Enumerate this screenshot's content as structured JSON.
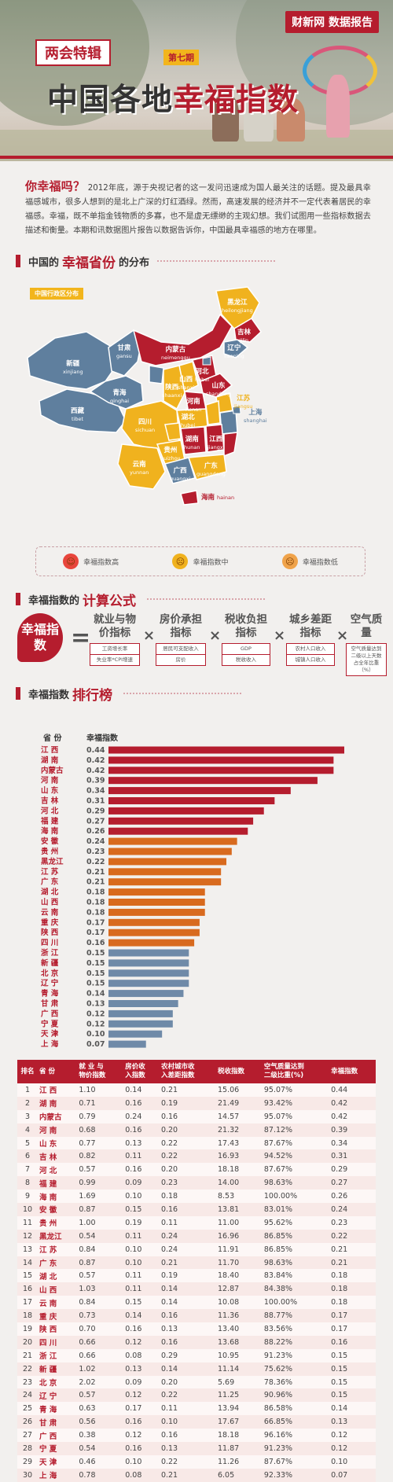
{
  "header": {
    "logo": "财新网 数据报告",
    "tag": "两会特辑",
    "issue": "第七期",
    "title_prefix": "中国各地",
    "title_highlight": "幸福指数"
  },
  "intro": {
    "question": "你幸福吗？",
    "text": "2012年底，源于央视记者的这一发问迅速成为国人最关注的话题。提及最具幸福感城市，很多人想到的是北上广深的灯红酒绿。然而，高速发展的经济并不一定代表着居民的幸福感。幸福，既不单指金钱物质的多寡，也不是虚无缥缈的主观幻想。我们试图用一些指标数据去描述和衡量。本期和讯数据图片报告以数据告诉你，中国最具幸福感的地方在哪里。"
  },
  "section_map": {
    "t1": "中国的",
    "t2": "幸福省份",
    "t3": "的分布"
  },
  "map": {
    "label": "中国行政区分布",
    "colors": {
      "high": "#b51d2e",
      "mid": "#f0b21e",
      "low": "#5f7f9e"
    },
    "provinces": [
      {
        "cn": "新疆",
        "py": "xinjiang",
        "level": "low"
      },
      {
        "cn": "西藏",
        "py": "tibet",
        "level": "low"
      },
      {
        "cn": "甘肃",
        "py": "gansu",
        "level": "low"
      },
      {
        "cn": "青海",
        "py": "qinghai",
        "level": "low"
      },
      {
        "cn": "内蒙古",
        "py": "neimenggu",
        "level": "high"
      },
      {
        "cn": "黑龙江",
        "py": "heilongjiang",
        "level": "mid"
      },
      {
        "cn": "吉林",
        "py": "jilin",
        "level": "high"
      },
      {
        "cn": "辽宁",
        "py": "liaoning",
        "level": "low"
      },
      {
        "cn": "北京",
        "py": "beijing",
        "level": "low"
      },
      {
        "cn": "天津",
        "py": "tianjin",
        "level": "low"
      },
      {
        "cn": "河北",
        "py": "hebei",
        "level": "high"
      },
      {
        "cn": "宁夏",
        "py": "ningxia",
        "level": "low"
      },
      {
        "cn": "山西",
        "py": "shanxi",
        "level": "mid"
      },
      {
        "cn": "陕西",
        "py": "shaanxi",
        "level": "mid"
      },
      {
        "cn": "山东",
        "py": "shandong",
        "level": "high"
      },
      {
        "cn": "河南",
        "py": "henan",
        "level": "high"
      },
      {
        "cn": "江苏",
        "py": "jiangsu",
        "level": "mid"
      },
      {
        "cn": "上海",
        "py": "shanghai",
        "level": "low"
      },
      {
        "cn": "安徽",
        "py": "anhui",
        "level": "mid"
      },
      {
        "cn": "湖北",
        "py": "hubei",
        "level": "mid"
      },
      {
        "cn": "四川",
        "py": "sichuan",
        "level": "mid"
      },
      {
        "cn": "重庆",
        "py": "chongqing",
        "level": "mid"
      },
      {
        "cn": "浙江",
        "py": "zhejiang",
        "level": "low"
      },
      {
        "cn": "湖南",
        "py": "hunan",
        "level": "high"
      },
      {
        "cn": "江西",
        "py": "jiangxi",
        "level": "high"
      },
      {
        "cn": "福建",
        "py": "fujian",
        "level": "high"
      },
      {
        "cn": "贵州",
        "py": "guizhou",
        "level": "mid"
      },
      {
        "cn": "云南",
        "py": "yunnan",
        "level": "mid"
      },
      {
        "cn": "广西",
        "py": "guangxi",
        "level": "low"
      },
      {
        "cn": "广东",
        "py": "guangdong",
        "level": "mid"
      },
      {
        "cn": "海南",
        "py": "hainan",
        "level": "high"
      }
    ],
    "legend": [
      {
        "label": "幸福指数高",
        "color": "#e8453c",
        "face": "☺"
      },
      {
        "label": "幸福指数中",
        "color": "#f0b21e",
        "face": "☹"
      },
      {
        "label": "幸福指数低",
        "color": "#f0a34a",
        "face": "☹"
      }
    ]
  },
  "section_formula": {
    "t1": "幸福指数的",
    "t2": "计算公式"
  },
  "formula": {
    "result": "幸福指数",
    "eq": "=",
    "op": "×",
    "terms": [
      {
        "name": "就业与物价指标",
        "subs": [
          "工资增长率",
          "失业率*CPI增速"
        ]
      },
      {
        "name": "房价承担指标",
        "subs": [
          "居民可支配收入",
          "房价"
        ]
      },
      {
        "name": "税收负担指标",
        "subs": [
          "GDP",
          "税收收入"
        ]
      },
      {
        "name": "城乡差距指标",
        "subs": [
          "农村人口收入",
          "城镇人口收入"
        ]
      },
      {
        "name": "空气质量",
        "subs": [
          "空气质量达到二级以上天数占全年比重（%）"
        ]
      }
    ]
  },
  "section_rank": {
    "t1": "幸福指数",
    "t2": "排行榜"
  },
  "chart_data": {
    "type": "bar",
    "orientation": "horizontal",
    "header_province": "省  份",
    "header_index": "幸福指数",
    "categories": [
      "江 西",
      "湖 南",
      "内蒙古",
      "河 南",
      "山 东",
      "吉 林",
      "河 北",
      "福 建",
      "海 南",
      "安 徽",
      "贵 州",
      "黑龙江",
      "江 苏",
      "广 东",
      "湖 北",
      "山 西",
      "云 南",
      "重 庆",
      "陕 西",
      "四 川",
      "浙 江",
      "新 疆",
      "北 京",
      "辽 宁",
      "青 海",
      "甘 肃",
      "广 西",
      "宁 夏",
      "天 津",
      "上 海"
    ],
    "values": [
      0.44,
      0.42,
      0.42,
      0.39,
      0.34,
      0.31,
      0.29,
      0.27,
      0.26,
      0.24,
      0.23,
      0.22,
      0.21,
      0.21,
      0.18,
      0.18,
      0.18,
      0.17,
      0.17,
      0.16,
      0.15,
      0.15,
      0.15,
      0.15,
      0.14,
      0.13,
      0.12,
      0.12,
      0.1,
      0.07
    ],
    "bar_colors": [
      "#b51d2e",
      "#b51d2e",
      "#b51d2e",
      "#b51d2e",
      "#b51d2e",
      "#b51d2e",
      "#b51d2e",
      "#b51d2e",
      "#b51d2e",
      "#d86a1e",
      "#d86a1e",
      "#d86a1e",
      "#d86a1e",
      "#d86a1e",
      "#d86a1e",
      "#d86a1e",
      "#d86a1e",
      "#d86a1e",
      "#d86a1e",
      "#d86a1e",
      "#6f8aa8",
      "#6f8aa8",
      "#6f8aa8",
      "#6f8aa8",
      "#6f8aa8",
      "#6f8aa8",
      "#6f8aa8",
      "#6f8aa8",
      "#6f8aa8",
      "#6f8aa8"
    ],
    "xlim": [
      0,
      0.44
    ]
  },
  "table": {
    "headers": [
      "排名",
      "省 份",
      "就 业 与\n物价指数",
      "房价收\n入指数",
      "农村城市收\n入差距指数",
      "税收指数",
      "空气质量达到\n二级比重(%)",
      "幸福指数"
    ],
    "rows": [
      [
        "1",
        "江 西",
        "1.10",
        "0.14",
        "0.21",
        "15.06",
        "95.07%",
        "0.44"
      ],
      [
        "2",
        "湖 南",
        "0.71",
        "0.16",
        "0.19",
        "21.49",
        "93.42%",
        "0.42"
      ],
      [
        "3",
        "内蒙古",
        "0.79",
        "0.24",
        "0.16",
        "14.57",
        "95.07%",
        "0.42"
      ],
      [
        "4",
        "河 南",
        "0.68",
        "0.16",
        "0.20",
        "21.32",
        "87.12%",
        "0.39"
      ],
      [
        "5",
        "山 东",
        "0.77",
        "0.13",
        "0.22",
        "17.43",
        "87.67%",
        "0.34"
      ],
      [
        "6",
        "吉 林",
        "0.82",
        "0.11",
        "0.22",
        "16.93",
        "94.52%",
        "0.31"
      ],
      [
        "7",
        "河 北",
        "0.57",
        "0.16",
        "0.20",
        "18.18",
        "87.67%",
        "0.29"
      ],
      [
        "8",
        "福 建",
        "0.99",
        "0.09",
        "0.23",
        "14.00",
        "98.63%",
        "0.27"
      ],
      [
        "9",
        "海 南",
        "1.69",
        "0.10",
        "0.18",
        "8.53",
        "100.00%",
        "0.26"
      ],
      [
        "10",
        "安 徽",
        "0.87",
        "0.15",
        "0.16",
        "13.81",
        "83.01%",
        "0.24"
      ],
      [
        "11",
        "贵 州",
        "1.00",
        "0.19",
        "0.11",
        "11.00",
        "95.62%",
        "0.23"
      ],
      [
        "12",
        "黑龙江",
        "0.54",
        "0.11",
        "0.24",
        "16.96",
        "86.85%",
        "0.22"
      ],
      [
        "13",
        "江 苏",
        "0.84",
        "0.10",
        "0.24",
        "11.91",
        "86.85%",
        "0.21"
      ],
      [
        "14",
        "广 东",
        "0.87",
        "0.10",
        "0.21",
        "11.70",
        "98.63%",
        "0.21"
      ],
      [
        "15",
        "湖 北",
        "0.57",
        "0.11",
        "0.19",
        "18.40",
        "83.84%",
        "0.18"
      ],
      [
        "16",
        "山 西",
        "1.03",
        "0.11",
        "0.14",
        "12.87",
        "84.38%",
        "0.18"
      ],
      [
        "17",
        "云 南",
        "0.84",
        "0.15",
        "0.14",
        "10.08",
        "100.00%",
        "0.18"
      ],
      [
        "18",
        "重 庆",
        "0.73",
        "0.14",
        "0.16",
        "11.36",
        "88.77%",
        "0.17"
      ],
      [
        "19",
        "陕 西",
        "0.70",
        "0.16",
        "0.13",
        "13.40",
        "83.56%",
        "0.17"
      ],
      [
        "20",
        "四 川",
        "0.66",
        "0.12",
        "0.16",
        "13.68",
        "88.22%",
        "0.16"
      ],
      [
        "21",
        "浙 江",
        "0.66",
        "0.08",
        "0.29",
        "10.95",
        "91.23%",
        "0.15"
      ],
      [
        "22",
        "新 疆",
        "1.02",
        "0.13",
        "0.14",
        "11.14",
        "75.62%",
        "0.15"
      ],
      [
        "23",
        "北 京",
        "2.02",
        "0.09",
        "0.20",
        "5.69",
        "78.36%",
        "0.15"
      ],
      [
        "24",
        "辽 宁",
        "0.57",
        "0.12",
        "0.22",
        "11.25",
        "90.96%",
        "0.15"
      ],
      [
        "25",
        "青 海",
        "0.63",
        "0.17",
        "0.11",
        "13.94",
        "86.58%",
        "0.14"
      ],
      [
        "26",
        "甘 肃",
        "0.56",
        "0.16",
        "0.10",
        "17.67",
        "66.85%",
        "0.13"
      ],
      [
        "27",
        "广 西",
        "0.38",
        "0.12",
        "0.16",
        "18.18",
        "96.16%",
        "0.12"
      ],
      [
        "28",
        "宁 夏",
        "0.54",
        "0.16",
        "0.13",
        "11.87",
        "91.23%",
        "0.12"
      ],
      [
        "29",
        "天 津",
        "0.46",
        "0.10",
        "0.22",
        "11.26",
        "87.67%",
        "0.10"
      ],
      [
        "30",
        "上 海",
        "0.78",
        "0.08",
        "0.21",
        "6.05",
        "92.33%",
        "0.07"
      ]
    ]
  }
}
